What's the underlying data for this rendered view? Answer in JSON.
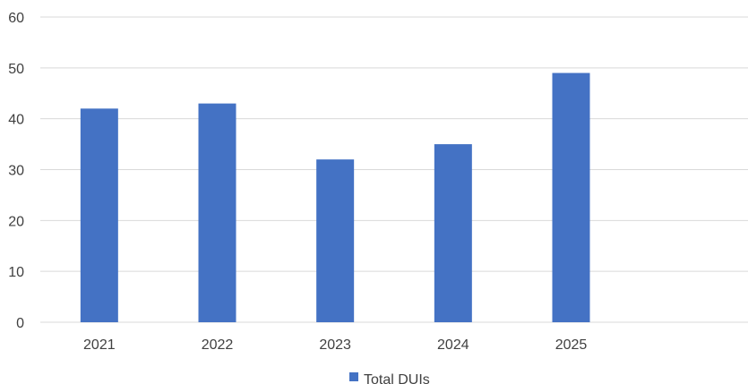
{
  "chart_data": {
    "type": "bar",
    "title": "",
    "xlabel": "",
    "ylabel": "",
    "categories": [
      "2021",
      "2022",
      "2023",
      "2024",
      "2025",
      ""
    ],
    "series": [
      {
        "name": "Total DUIs",
        "values": [
          42,
          43,
          32,
          35,
          49,
          null
        ],
        "color": "#4472C4"
      }
    ],
    "ylim": [
      0,
      60
    ],
    "yticks": [
      0,
      10,
      20,
      30,
      40,
      50,
      60
    ],
    "grid": true,
    "gridColor": "#D9D9D9",
    "legend": "bottom"
  }
}
